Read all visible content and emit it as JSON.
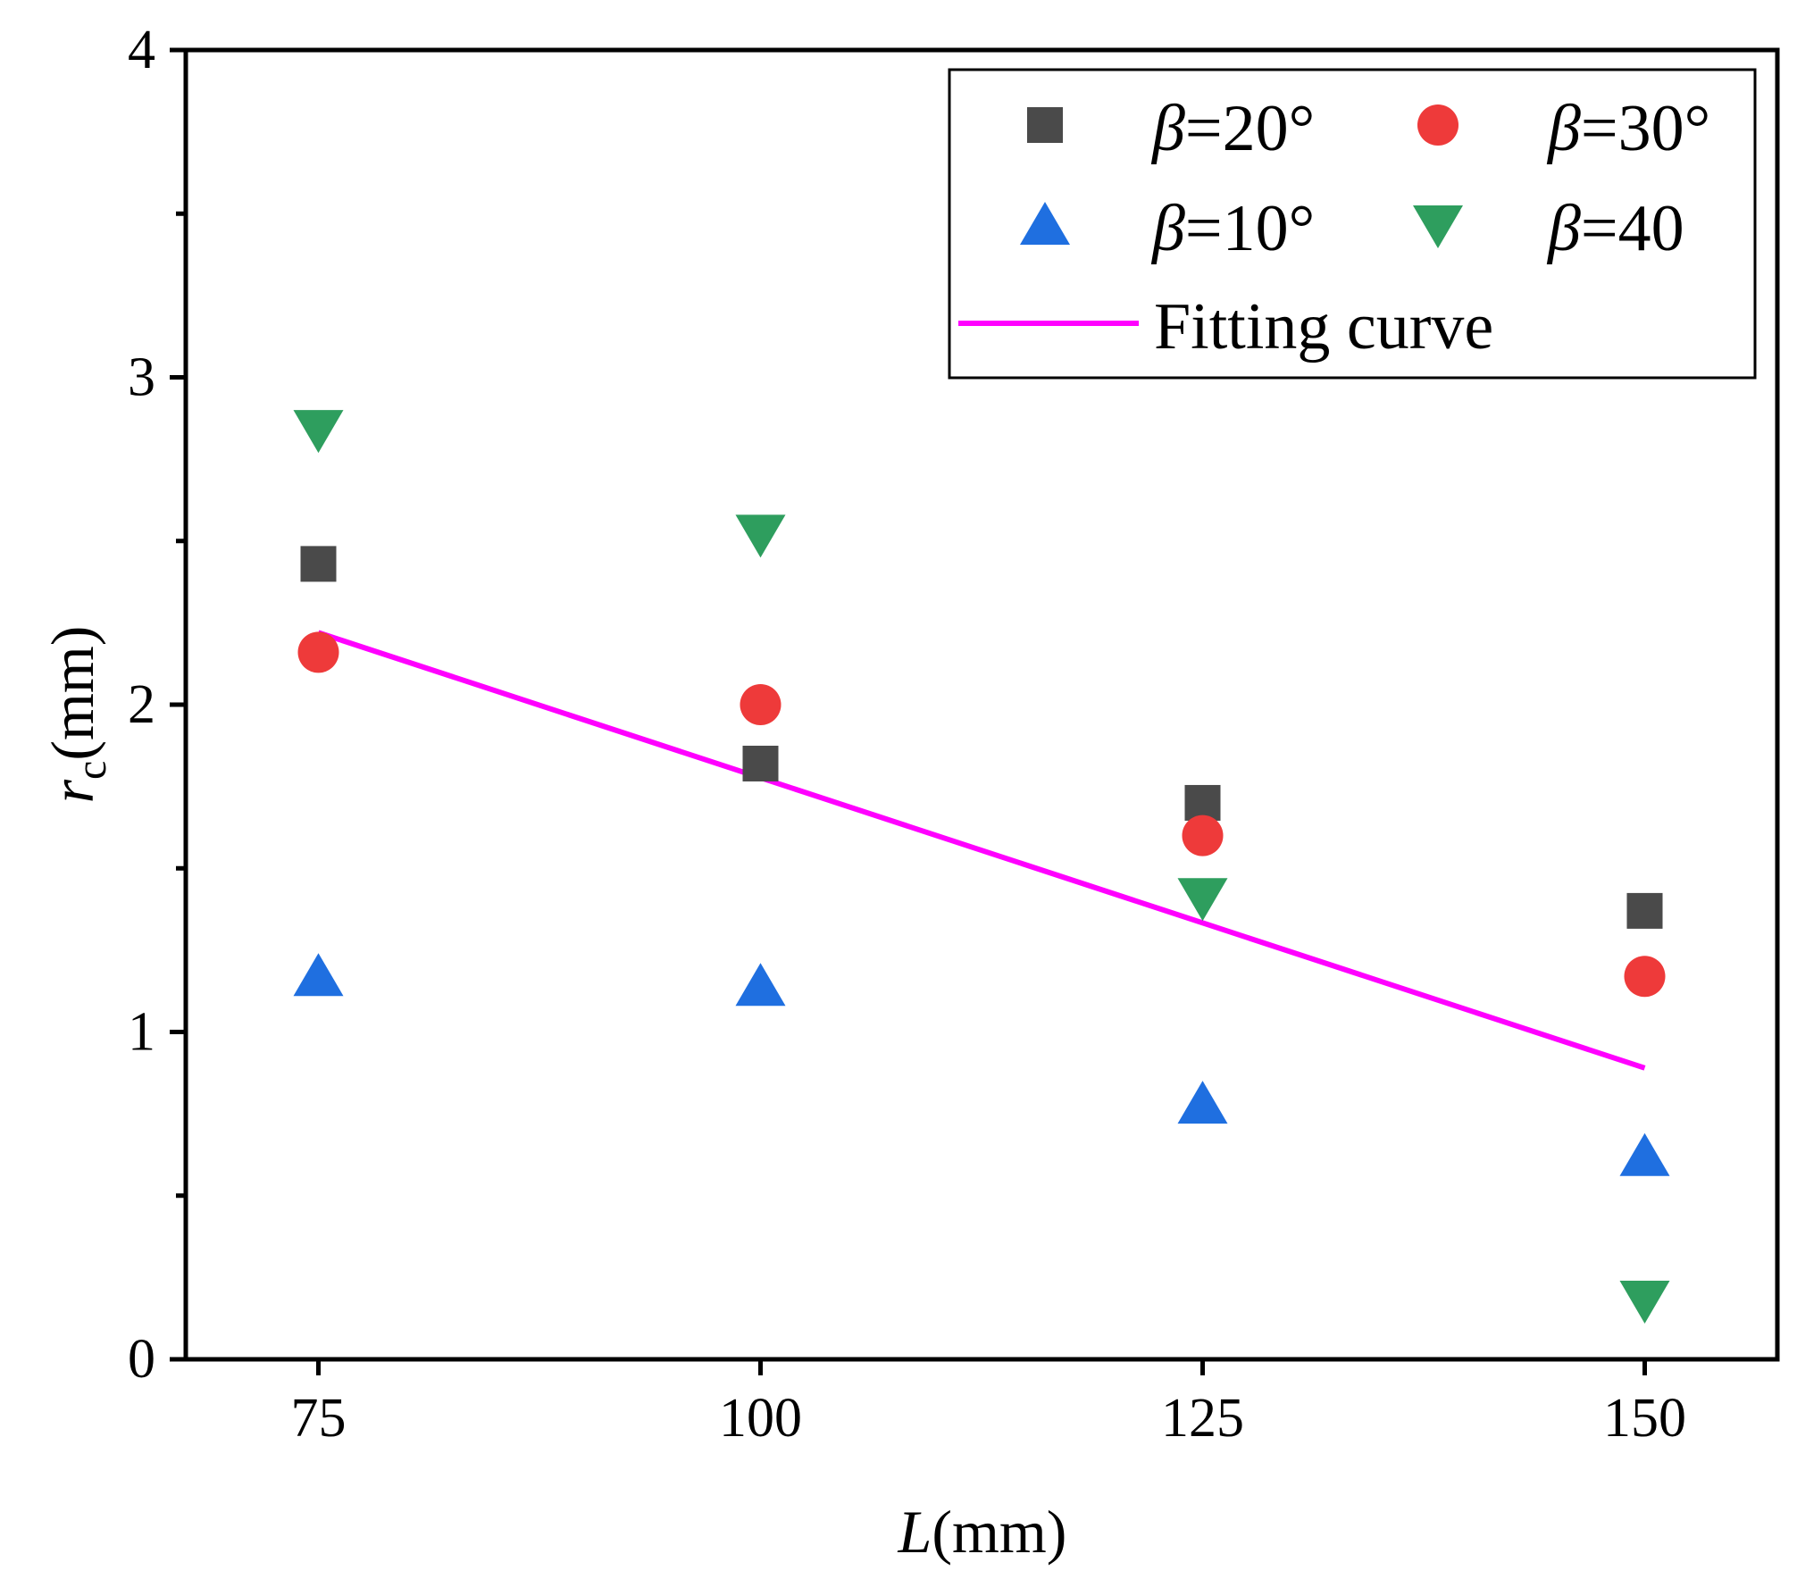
{
  "chart_data": {
    "type": "scatter",
    "xlabel": {
      "symbol": "L",
      "unit": "(mm)"
    },
    "ylabel": {
      "symbol": "r",
      "subscript": "c",
      "unit": "(mm)"
    },
    "xlim": [
      67.5,
      157.5
    ],
    "ylim": [
      0,
      4
    ],
    "xticks": [
      75,
      100,
      125,
      150
    ],
    "xtick_labels": [
      "75",
      "100",
      "125",
      "150"
    ],
    "yticks": [
      0,
      1,
      2,
      3,
      4
    ],
    "ytick_labels": [
      "0",
      "1",
      "2",
      "3",
      "4"
    ],
    "yminor_ticks": [
      0.5,
      1.5,
      2.5,
      3.5
    ],
    "legend_position": "top-right",
    "series": [
      {
        "name": "β=20°",
        "greek": "β",
        "rest": "=20°",
        "marker": "square",
        "color": "#4a4a4a",
        "x": [
          75,
          100,
          125,
          150
        ],
        "y": [
          2.43,
          1.82,
          1.7,
          1.37
        ]
      },
      {
        "name": "β=30°",
        "greek": "β",
        "rest": "=30°",
        "marker": "circle",
        "color": "#ee3a3a",
        "x": [
          75,
          100,
          125,
          150
        ],
        "y": [
          2.16,
          2.0,
          1.6,
          1.17
        ]
      },
      {
        "name": "β=10°",
        "greek": "β",
        "rest": "=10°",
        "marker": "triangle-up",
        "color": "#1f6fe0",
        "x": [
          75,
          100,
          125,
          150
        ],
        "y": [
          1.17,
          1.14,
          0.78,
          0.62
        ]
      },
      {
        "name": "β=40",
        "greek": "β",
        "rest": "=40",
        "marker": "triangle-down",
        "color": "#2e9e5e",
        "x": [
          75,
          100,
          125,
          150
        ],
        "y": [
          2.84,
          2.52,
          1.41,
          0.18
        ]
      }
    ],
    "fit": {
      "name": "Fitting curve",
      "color": "#ff00ff",
      "x": [
        75,
        150
      ],
      "y": [
        2.22,
        0.89
      ]
    }
  }
}
